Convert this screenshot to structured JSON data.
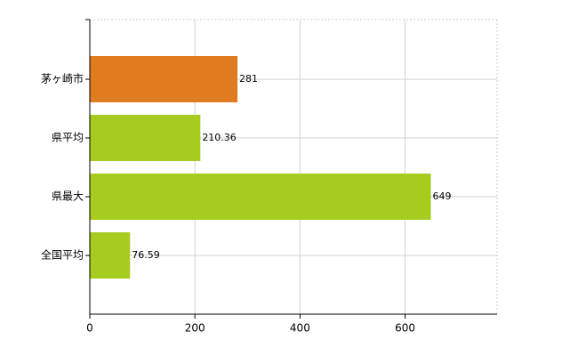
{
  "chart_data": {
    "type": "bar",
    "orientation": "horizontal",
    "categories": [
      "茅ヶ崎市",
      "県平均",
      "県最大",
      "全国平均"
    ],
    "values": [
      281,
      210.36,
      649,
      76.59
    ],
    "colors": [
      "#e07b20",
      "#a5cc1f",
      "#a5cc1f",
      "#a5cc1f"
    ],
    "xlim": [
      0,
      775
    ],
    "xticks": [
      0,
      200,
      400,
      600
    ],
    "grid": true
  }
}
